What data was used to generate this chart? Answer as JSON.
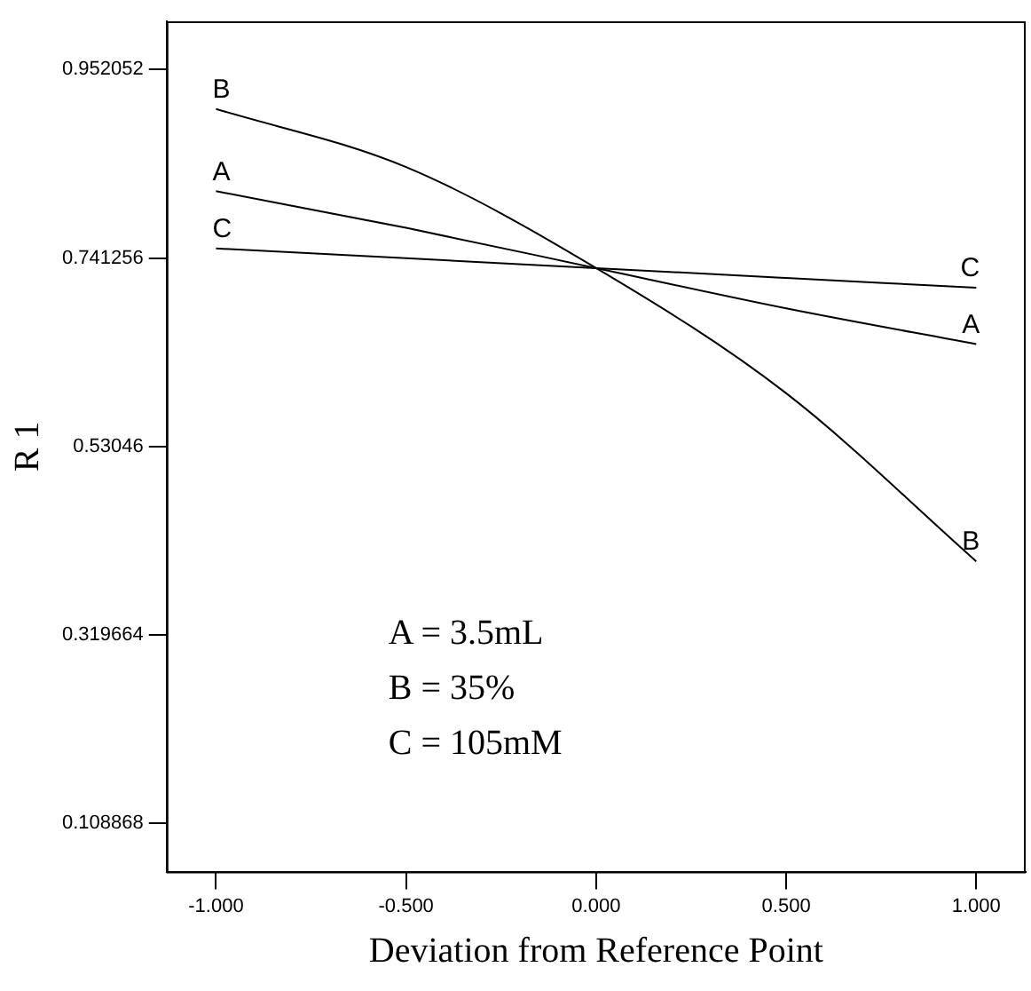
{
  "chart_data": {
    "type": "line",
    "xlabel": "Deviation from Reference Point",
    "ylabel": "R 1",
    "x": [
      -1,
      -0.5,
      0,
      0.5,
      1
    ],
    "series": [
      {
        "name": "A",
        "color": "#000000",
        "values": [
          0.816,
          0.775,
          0.73,
          0.685,
          0.645
        ]
      },
      {
        "name": "B",
        "color": "#000000",
        "values": [
          0.908,
          0.843,
          0.73,
          0.59,
          0.402
        ]
      },
      {
        "name": "C",
        "color": "#000000",
        "values": [
          0.752,
          0.741,
          0.73,
          0.719,
          0.708
        ]
      }
    ],
    "xlim": [
      -1.13,
      1.13
    ],
    "xticks": [
      {
        "value": -1,
        "label": "-1.000"
      },
      {
        "value": -0.5,
        "label": "-0.500"
      },
      {
        "value": 0,
        "label": "0.000"
      },
      {
        "value": 0.5,
        "label": "0.500"
      },
      {
        "value": 1,
        "label": "1.000"
      }
    ],
    "ylim": [
      0.055,
      1.006
    ],
    "yticks": [
      0.108868,
      0.319664,
      0.53046,
      0.741256,
      0.952052
    ],
    "annotations": [
      "A = 3.5mL",
      "B = 35%",
      "C = 105mM"
    ],
    "grid": false,
    "legend": false,
    "marker": "none",
    "line_style": "solid"
  }
}
